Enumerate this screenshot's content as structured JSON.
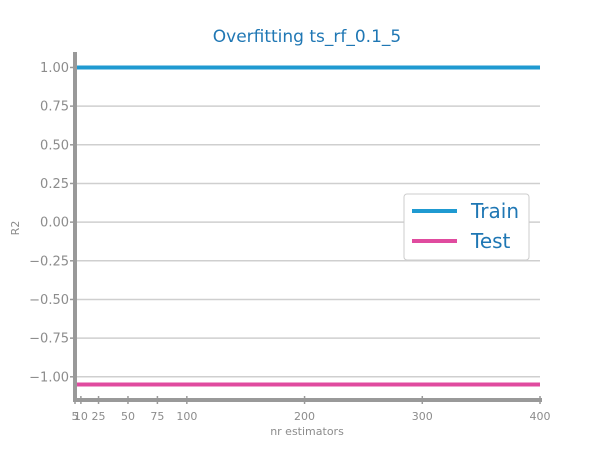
{
  "chart_data": {
    "type": "line",
    "title": "Overfitting ts_rf_0.1_5",
    "xlabel": "nr estimators",
    "ylabel": "R2",
    "x": [
      5,
      10,
      25,
      50,
      75,
      100,
      200,
      300,
      400
    ],
    "xticks": [
      5,
      10,
      25,
      50,
      75,
      100,
      200,
      300,
      400
    ],
    "yticks": [
      "1.00",
      "0.75",
      "0.50",
      "0.25",
      "0.00",
      "−0.25",
      "−0.50",
      "−0.75",
      "−1.00"
    ],
    "ytick_values": [
      1.0,
      0.75,
      0.5,
      0.25,
      0.0,
      -0.25,
      -0.5,
      -0.75,
      -1.0
    ],
    "xlim": [
      5,
      400
    ],
    "ylim": [
      -1.15,
      1.1
    ],
    "grid": "horizontal",
    "legend_position": "center-right",
    "series": [
      {
        "name": "Train",
        "color": "#1f9ad1",
        "values": [
          1.0,
          1.0,
          1.0,
          1.0,
          1.0,
          1.0,
          1.0,
          1.0,
          1.0
        ]
      },
      {
        "name": "Test",
        "color": "#e04b9f",
        "values": [
          -1.05,
          -1.05,
          -1.05,
          -1.05,
          -1.05,
          -1.05,
          -1.05,
          -1.05,
          -1.05
        ]
      }
    ]
  }
}
